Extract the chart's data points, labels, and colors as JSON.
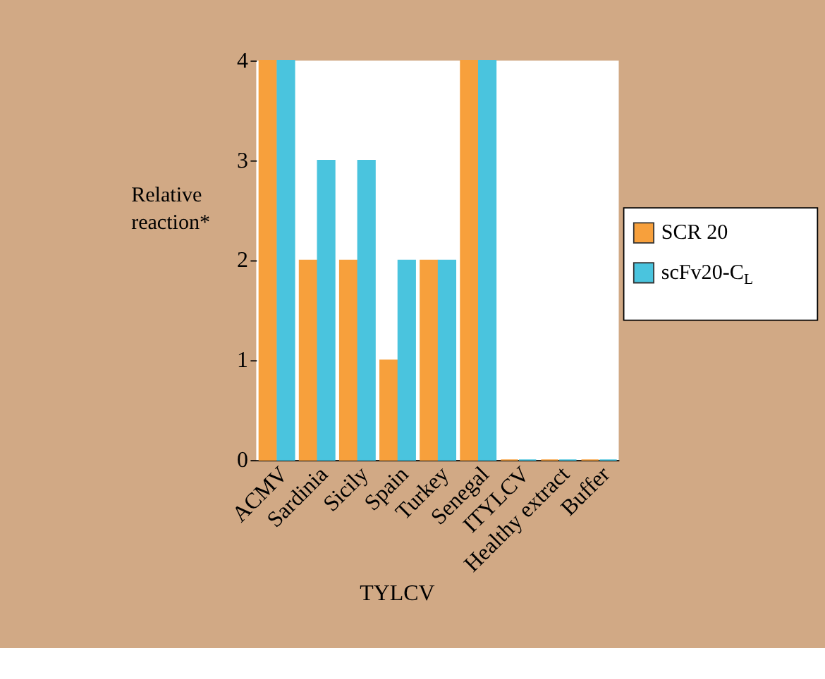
{
  "chart_data": {
    "type": "bar",
    "ylabel": "Relative reaction*",
    "categories": [
      "ACMV",
      "Sardinia",
      "Sicily",
      "Spain",
      "Turkey",
      "Senegal",
      "ITYLCV",
      "Healthy extract",
      "Buffer"
    ],
    "series": [
      {
        "name": "SCR 20",
        "color": "#f7a03c",
        "values": [
          4,
          2,
          2,
          1,
          2,
          4,
          0,
          0,
          0
        ]
      },
      {
        "name": "scFv20-C$_{L}$",
        "color": "#4ac4de",
        "values": [
          4,
          3,
          3,
          2,
          2,
          4,
          0,
          0,
          0
        ]
      }
    ],
    "ylim": [
      0,
      4
    ],
    "yticks": [
      0,
      1,
      2,
      3,
      4
    ],
    "grid": false,
    "legend": "right",
    "annotations": [
      "TYLCV"
    ]
  }
}
